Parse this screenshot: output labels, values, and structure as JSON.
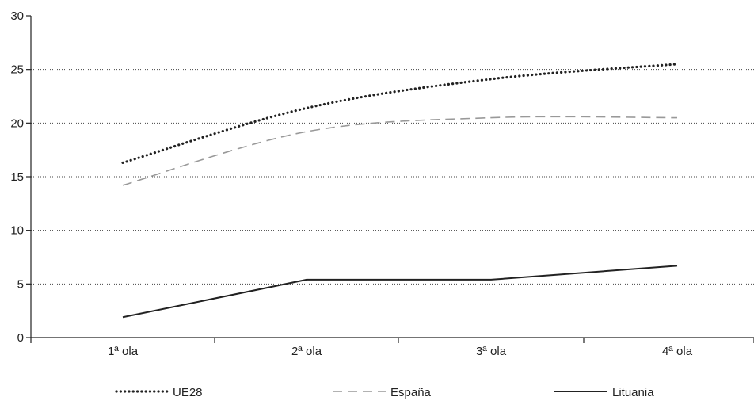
{
  "chart_data": {
    "type": "line",
    "title": "",
    "xlabel": "",
    "ylabel": "",
    "categories": [
      "1ª ola",
      "2ª ola",
      "3ª ola",
      "4ª ola"
    ],
    "ylim": [
      0,
      30
    ],
    "yticks": [
      0,
      5,
      10,
      15,
      20,
      25,
      30
    ],
    "grid": "horizontal-dotted",
    "legend_position": "bottom",
    "series": [
      {
        "name": "UE28",
        "values": [
          16.3,
          21.4,
          24.1,
          25.5
        ],
        "style": "dotted",
        "color": "#222222"
      },
      {
        "name": "España",
        "values": [
          14.2,
          19.2,
          20.5,
          20.5
        ],
        "style": "dashed",
        "color": "#999999"
      },
      {
        "name": "Lituania",
        "values": [
          1.9,
          5.4,
          5.4,
          6.7
        ],
        "style": "solid",
        "color": "#222222"
      }
    ]
  }
}
